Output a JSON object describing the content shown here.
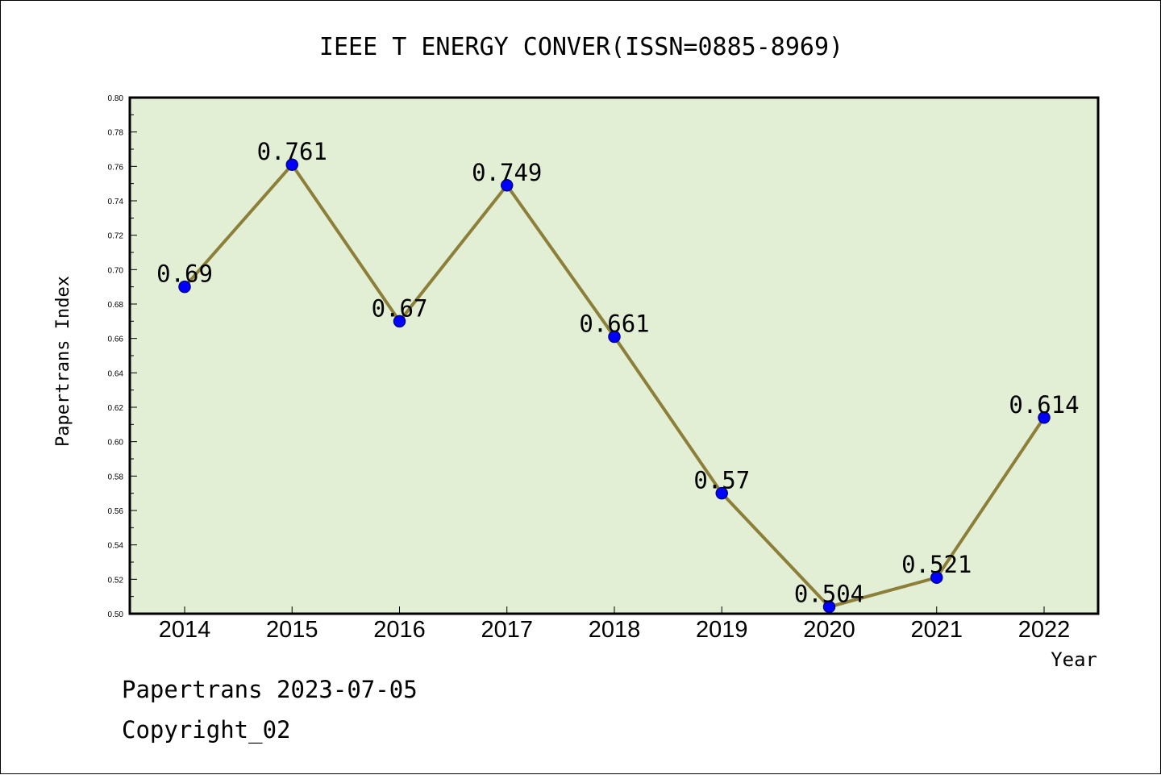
{
  "chart_data": {
    "type": "line",
    "title": "IEEE T ENERGY CONVER(ISSN=0885-8969)",
    "xlabel": "Year",
    "ylabel": "Papertrans Index",
    "categories": [
      "2014",
      "2015",
      "2016",
      "2017",
      "2018",
      "2019",
      "2020",
      "2021",
      "2022"
    ],
    "series": [
      {
        "values": [
          0.69,
          0.761,
          0.67,
          0.749,
          0.661,
          0.57,
          0.504,
          0.521,
          0.614
        ],
        "labels": [
          "0.69",
          "0.761",
          "0.67",
          "0.749",
          "0.661",
          "0.57",
          "0.504",
          "0.521",
          "0.614"
        ]
      }
    ],
    "ylim": [
      0.5,
      0.8
    ],
    "yticks": [
      "0.50",
      "0.52",
      "0.54",
      "0.56",
      "0.58",
      "0.60",
      "0.62",
      "0.64",
      "0.66",
      "0.68",
      "0.70",
      "0.72",
      "0.74",
      "0.76",
      "0.78",
      "0.80"
    ],
    "grid": false,
    "legend": "none",
    "colors": {
      "plot_background": "#e2efd4",
      "line": "#8c7f3a",
      "marker": "#0000ff",
      "marker_edge": "#00008b"
    }
  },
  "footer": {
    "line1": "Papertrans 2023-07-05",
    "line2": "Copyright_02"
  }
}
